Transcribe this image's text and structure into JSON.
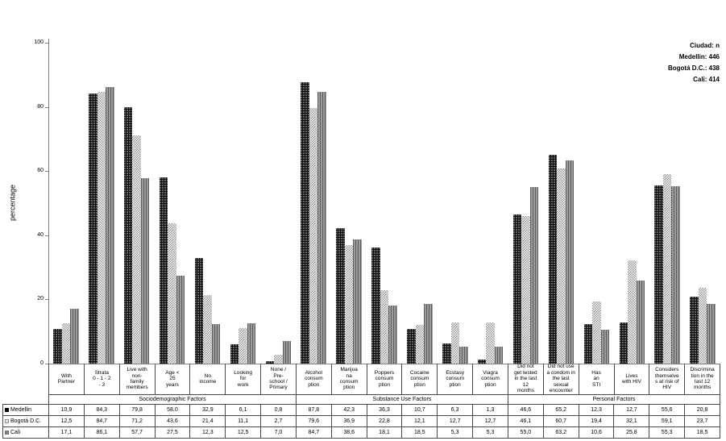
{
  "figure": {
    "y_axis_label": "percentage",
    "legend_note": {
      "lines": [
        "Ciudad: n",
        "Medellin: 446",
        "Bogotá D.C.: 438",
        "Cali: 414"
      ]
    }
  },
  "chart_data": {
    "type": "bar",
    "title": "",
    "xlabel": "",
    "ylabel": "percentage",
    "ylim": [
      0,
      100
    ],
    "yticks": [
      0,
      20,
      40,
      60,
      80,
      100
    ],
    "grid": false,
    "legend_position": "table-left",
    "decimal_separator": ",",
    "group_labels": [
      {
        "label": "Sociodemographic Factors",
        "span": 7
      },
      {
        "label": "Substance Use Factors",
        "span": 6
      },
      {
        "label": "Personal Factors",
        "span": 6
      }
    ],
    "categories": [
      "With Partner",
      "Strata 0 - 1 - 2 - 3",
      "Live with non-family members",
      "Age < 25 years",
      "No income",
      "Looking for work",
      "None / Pre-school / Primary",
      "Alcohol consumption",
      "Marijuana consumption",
      "Poppers consumption",
      "Cocaine consumption",
      "Ecstasy consumption",
      "Viagra consumption",
      "Did not get tested in the last 12 months",
      "Did not use a condom in the last sexual encounter",
      "Has an STI",
      "Lives with HIV",
      "Considers themselves at risk of HIV",
      "Discrimination in the last 12 months"
    ],
    "category_label_lines": [
      "With\nPartner",
      "Strata\n0 - 1 - 2\n- 3",
      "Live with\nnon-\nfamily\nmembers",
      "Age <\n25\nyears",
      "No\nincome",
      "Looking\nfor\nwork",
      "None /\nPre-\nschool /\nPrimary",
      "Alcohol\nconsum\nption",
      "Marijua\nna\nconsum\nption",
      "Poppers\nconsum\nption",
      "Cocaine\nconsum\nption",
      "Ecstasy\nconsum\nption",
      "Viagra\nconsum\nption",
      "Did not\nget tested\nin the last\n12\nmonths",
      "Did not use\na condom in\nthe last\nsexual\nencounter",
      "Has\nan\nSTI",
      "Lives\nwith HIV",
      "Considers\nthemselve\ns at risk of\nHIV",
      "Discrimina\ntion in the\nlast 12\nmonths"
    ],
    "series": [
      {
        "name": "Medellin",
        "pattern": "black-dots",
        "values": [
          10.9,
          84.3,
          79.8,
          58.0,
          32.9,
          6.1,
          0.8,
          87.8,
          42.3,
          36.3,
          10.7,
          6.3,
          1.3,
          46.6,
          65.2,
          12.3,
          12.7,
          55.6,
          20.8
        ]
      },
      {
        "name": "Bogotá D.C.",
        "pattern": "light-checker",
        "values": [
          12.5,
          84.7,
          71.2,
          43.6,
          21.4,
          11.1,
          2.7,
          79.6,
          36.9,
          22.8,
          12.1,
          12.7,
          12.7,
          46.1,
          60.7,
          19.4,
          32.1,
          59.1,
          23.7
        ]
      },
      {
        "name": "Cali",
        "pattern": "gray-vertical-stripes",
        "values": [
          17.1,
          86.1,
          57.7,
          27.5,
          12.3,
          12.5,
          7.0,
          84.7,
          38.6,
          18.1,
          18.5,
          5.3,
          5.3,
          55.0,
          63.2,
          10.6,
          25.8,
          55.3,
          18.5
        ]
      }
    ]
  }
}
